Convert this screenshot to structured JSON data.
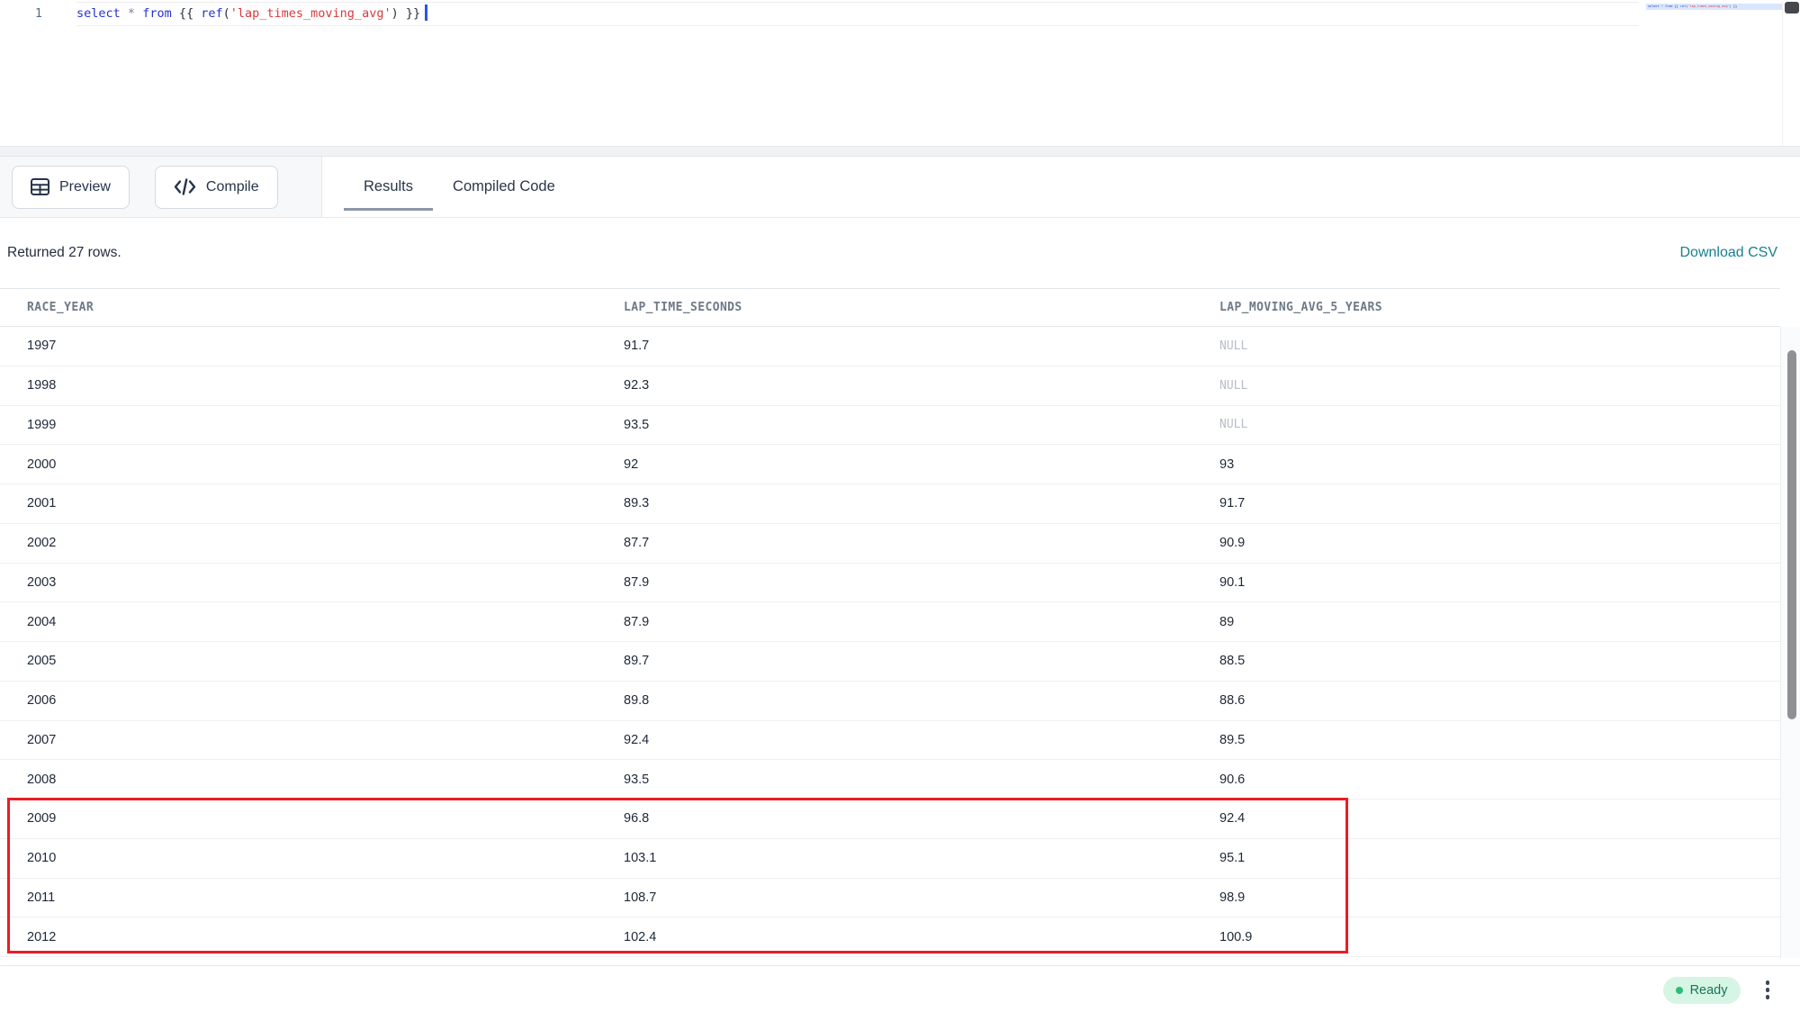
{
  "editor": {
    "line_number": "1",
    "sql_text": "select * from {{ ref('lap_times_moving_avg') }}",
    "tokens": [
      {
        "text": "select",
        "type": "keyword"
      },
      {
        "text": " ",
        "type": "plain"
      },
      {
        "text": "*",
        "type": "operator"
      },
      {
        "text": " ",
        "type": "plain"
      },
      {
        "text": "from",
        "type": "keyword"
      },
      {
        "text": " {{ ",
        "type": "plain"
      },
      {
        "text": "ref",
        "type": "keyword"
      },
      {
        "text": "(",
        "type": "plain"
      },
      {
        "text": "'lap_times_moving_avg'",
        "type": "string"
      },
      {
        "text": ")",
        "type": "plain"
      },
      {
        "text": " }}",
        "type": "plain"
      }
    ]
  },
  "toolbar": {
    "preview_label": "Preview",
    "compile_label": "Compile",
    "tabs": [
      {
        "label": "Results",
        "active": true
      },
      {
        "label": "Compiled Code",
        "active": false
      }
    ]
  },
  "results": {
    "summary": "Returned 27 rows.",
    "download_label": "Download CSV",
    "table": {
      "columns": [
        "RACE_YEAR",
        "LAP_TIME_SECONDS",
        "LAP_MOVING_AVG_5_YEARS"
      ],
      "rows": [
        [
          "1997",
          "91.7",
          "NULL"
        ],
        [
          "1998",
          "92.3",
          "NULL"
        ],
        [
          "1999",
          "93.5",
          "NULL"
        ],
        [
          "2000",
          "92",
          "93"
        ],
        [
          "2001",
          "89.3",
          "91.7"
        ],
        [
          "2002",
          "87.7",
          "90.9"
        ],
        [
          "2003",
          "87.9",
          "90.1"
        ],
        [
          "2004",
          "87.9",
          "89"
        ],
        [
          "2005",
          "89.7",
          "88.5"
        ],
        [
          "2006",
          "89.8",
          "88.6"
        ],
        [
          "2007",
          "92.4",
          "89.5"
        ],
        [
          "2008",
          "93.5",
          "90.6"
        ],
        [
          "2009",
          "96.8",
          "92.4"
        ],
        [
          "2010",
          "103.1",
          "95.1"
        ],
        [
          "2011",
          "108.7",
          "98.9"
        ],
        [
          "2012",
          "102.4",
          "100.9"
        ]
      ],
      "null_display": "NULL",
      "highlight_annotation": {
        "from_year": "2009",
        "to_year": "2012",
        "color": "#ec1c24"
      }
    }
  },
  "statusbar": {
    "ready_label": "Ready"
  },
  "colors": {
    "keyword_blue": "#2433cc",
    "string_red": "#d83a3e",
    "link_teal": "#17808f",
    "annotation_red": "#ec1c24",
    "ready_green": "#2cbe74",
    "ready_bg": "#d6f5e4",
    "text_dark": "#26334b",
    "null_gray": "#b7bec9"
  }
}
